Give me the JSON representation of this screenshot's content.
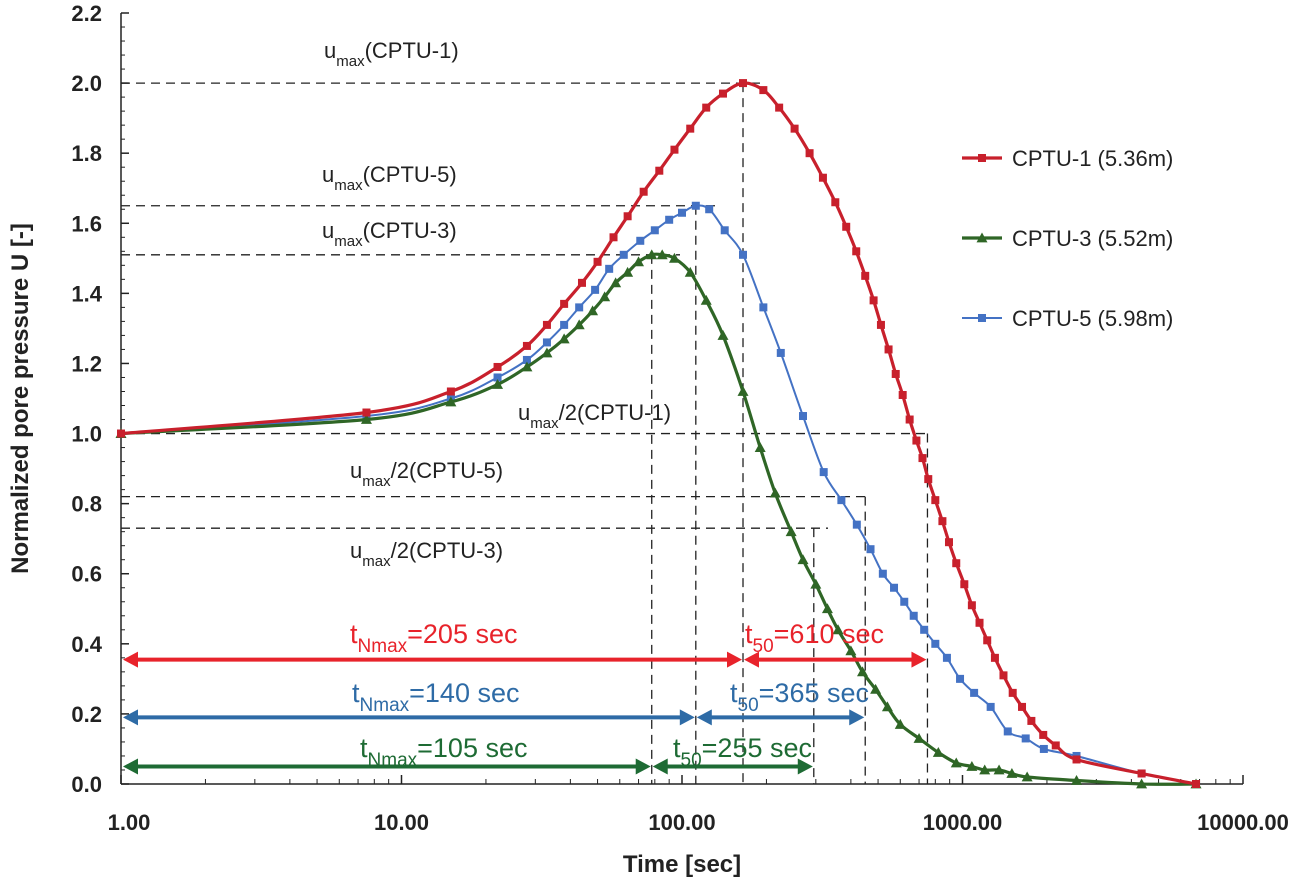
{
  "chart_data": {
    "type": "line",
    "xscale": "log",
    "xlim": [
      1,
      10000
    ],
    "ylim": [
      0,
      2.2
    ],
    "xlabel": "Time [sec]",
    "ylabel": "Normalized pore pressure U [-]",
    "x_tick_labels": [
      "1.00",
      "10.00",
      "100.00",
      "1000.00",
      "10000.00"
    ],
    "x_tick_values": [
      1,
      10,
      100,
      1000,
      10000
    ],
    "y_tick_labels": [
      "0.0",
      "0.2",
      "0.4",
      "0.6",
      "0.8",
      "1.0",
      "1.2",
      "1.4",
      "1.6",
      "1.8",
      "2.0",
      "2.2"
    ],
    "y_tick_values": [
      0,
      0.2,
      0.4,
      0.6,
      0.8,
      1.0,
      1.2,
      1.4,
      1.6,
      1.8,
      2.0,
      2.2
    ],
    "series": [
      {
        "name": "CPTU-1 (5.36m)",
        "color": "#c8202c",
        "marker": "square",
        "points": [
          [
            1,
            1.0
          ],
          [
            7.5,
            1.06
          ],
          [
            15,
            1.12
          ],
          [
            22,
            1.19
          ],
          [
            28,
            1.25
          ],
          [
            33,
            1.31
          ],
          [
            38,
            1.37
          ],
          [
            44,
            1.43
          ],
          [
            50,
            1.49
          ],
          [
            57,
            1.56
          ],
          [
            64,
            1.62
          ],
          [
            73,
            1.69
          ],
          [
            83,
            1.75
          ],
          [
            94,
            1.81
          ],
          [
            107,
            1.87
          ],
          [
            122,
            1.93
          ],
          [
            140,
            1.97
          ],
          [
            165,
            2.0
          ],
          [
            195,
            1.98
          ],
          [
            222,
            1.93
          ],
          [
            252,
            1.87
          ],
          [
            285,
            1.8
          ],
          [
            318,
            1.73
          ],
          [
            352,
            1.66
          ],
          [
            385,
            1.59
          ],
          [
            418,
            1.52
          ],
          [
            450,
            1.45
          ],
          [
            482,
            1.38
          ],
          [
            512,
            1.31
          ],
          [
            545,
            1.24
          ],
          [
            578,
            1.17
          ],
          [
            612,
            1.11
          ],
          [
            648,
            1.04
          ],
          [
            685,
            0.98
          ],
          [
            720,
            0.93
          ],
          [
            755,
            0.87
          ],
          [
            800,
            0.81
          ],
          [
            848,
            0.75
          ],
          [
            895,
            0.69
          ],
          [
            950,
            0.63
          ],
          [
            1015,
            0.57
          ],
          [
            1080,
            0.51
          ],
          [
            1150,
            0.46
          ],
          [
            1225,
            0.41
          ],
          [
            1305,
            0.36
          ],
          [
            1400,
            0.31
          ],
          [
            1510,
            0.26
          ],
          [
            1630,
            0.22
          ],
          [
            1760,
            0.18
          ],
          [
            1940,
            0.14
          ],
          [
            2150,
            0.11
          ],
          [
            2550,
            0.07
          ],
          [
            4350,
            0.03
          ],
          [
            6800,
            0.0
          ]
        ]
      },
      {
        "name": "CPTU-3 (5.52m)",
        "color": "#2f6626",
        "marker": "triangle",
        "points": [
          [
            1,
            1.0
          ],
          [
            7.5,
            1.04
          ],
          [
            15,
            1.09
          ],
          [
            22,
            1.14
          ],
          [
            28,
            1.19
          ],
          [
            33,
            1.23
          ],
          [
            38,
            1.27
          ],
          [
            43,
            1.31
          ],
          [
            48,
            1.35
          ],
          [
            53,
            1.39
          ],
          [
            58,
            1.43
          ],
          [
            64,
            1.46
          ],
          [
            70,
            1.49
          ],
          [
            78,
            1.51
          ],
          [
            85,
            1.51
          ],
          [
            94,
            1.5
          ],
          [
            107,
            1.46
          ],
          [
            122,
            1.38
          ],
          [
            140,
            1.28
          ],
          [
            165,
            1.12
          ],
          [
            190,
            0.96
          ],
          [
            215,
            0.83
          ],
          [
            245,
            0.72
          ],
          [
            270,
            0.64
          ],
          [
            300,
            0.57
          ],
          [
            330,
            0.5
          ],
          [
            360,
            0.44
          ],
          [
            400,
            0.38
          ],
          [
            440,
            0.32
          ],
          [
            490,
            0.27
          ],
          [
            540,
            0.22
          ],
          [
            600,
            0.17
          ],
          [
            700,
            0.13
          ],
          [
            820,
            0.09
          ],
          [
            950,
            0.06
          ],
          [
            1080,
            0.05
          ],
          [
            1200,
            0.04
          ],
          [
            1350,
            0.04
          ],
          [
            1500,
            0.03
          ],
          [
            1700,
            0.02
          ],
          [
            2550,
            0.01
          ],
          [
            4350,
            0.0
          ],
          [
            6800,
            0.0
          ]
        ]
      },
      {
        "name": "CPTU-5 (5.98m)",
        "color": "#4472c4",
        "marker": "square",
        "points": [
          [
            1,
            1.0
          ],
          [
            7.5,
            1.05
          ],
          [
            15,
            1.1
          ],
          [
            22,
            1.16
          ],
          [
            28,
            1.21
          ],
          [
            33,
            1.26
          ],
          [
            38,
            1.31
          ],
          [
            43,
            1.36
          ],
          [
            49,
            1.41
          ],
          [
            55,
            1.47
          ],
          [
            62,
            1.51
          ],
          [
            71,
            1.55
          ],
          [
            80,
            1.58
          ],
          [
            90,
            1.61
          ],
          [
            100,
            1.63
          ],
          [
            112,
            1.65
          ],
          [
            125,
            1.64
          ],
          [
            142,
            1.58
          ],
          [
            165,
            1.51
          ],
          [
            195,
            1.36
          ],
          [
            225,
            1.23
          ],
          [
            270,
            1.05
          ],
          [
            320,
            0.89
          ],
          [
            370,
            0.81
          ],
          [
            420,
            0.74
          ],
          [
            470,
            0.67
          ],
          [
            520,
            0.6
          ],
          [
            570,
            0.56
          ],
          [
            620,
            0.52
          ],
          [
            670,
            0.48
          ],
          [
            730,
            0.44
          ],
          [
            800,
            0.4
          ],
          [
            880,
            0.36
          ],
          [
            980,
            0.3
          ],
          [
            1100,
            0.26
          ],
          [
            1260,
            0.22
          ],
          [
            1450,
            0.15
          ],
          [
            1680,
            0.13
          ],
          [
            1950,
            0.1
          ],
          [
            2550,
            0.08
          ],
          [
            4350,
            0.03
          ],
          [
            6800,
            0.0
          ]
        ]
      }
    ],
    "reference_lines": {
      "horizontal": [
        2.0,
        1.65,
        1.51,
        1.0,
        0.82,
        0.73
      ],
      "vertical": [
        78,
        112,
        165,
        295,
        450,
        750
      ]
    },
    "annotations": [
      {
        "base": "u",
        "sub": "max",
        "tail": "(CPTU-1)"
      },
      {
        "base": "u",
        "sub": "max",
        "tail": "(CPTU-5)"
      },
      {
        "base": "u",
        "sub": "max",
        "tail": "(CPTU-3)"
      },
      {
        "base": "u",
        "sub": "max",
        "tail": "/2(CPTU-1)"
      },
      {
        "base": "u",
        "sub": "max",
        "tail": "/2(CPTU-5)"
      },
      {
        "base": "u",
        "sub": "max",
        "tail": "/2(CPTU-3)"
      }
    ],
    "arrows": [
      {
        "color": "#e8232b",
        "y": 0.355,
        "x_from": 1,
        "x_to": 165,
        "base": "t",
        "sub": "Nmax",
        "tail": "=205 sec"
      },
      {
        "color": "#e8232b",
        "y": 0.355,
        "x_from": 165,
        "x_to": 750,
        "base": "t",
        "sub": "50",
        "tail": "=610 sec"
      },
      {
        "color": "#2e6ba6",
        "y": 0.19,
        "x_from": 1,
        "x_to": 112,
        "base": "t",
        "sub": "Nmax",
        "tail": "=140 sec"
      },
      {
        "color": "#2e6ba6",
        "y": 0.19,
        "x_from": 112,
        "x_to": 450,
        "base": "t",
        "sub": "50",
        "tail": "=365 sec"
      },
      {
        "color": "#1e6b34",
        "y": 0.05,
        "x_from": 1,
        "x_to": 78,
        "base": "t",
        "sub": "Nmax",
        "tail": "=105 sec"
      },
      {
        "color": "#1e6b34",
        "y": 0.05,
        "x_from": 78,
        "x_to": 295,
        "base": "t",
        "sub": "50",
        "tail": "=255 sec"
      }
    ],
    "legend": [
      "CPTU-1 (5.36m)",
      "CPTU-3 (5.52m)",
      "CPTU-5 (5.98m)"
    ],
    "legend_position": "right"
  }
}
